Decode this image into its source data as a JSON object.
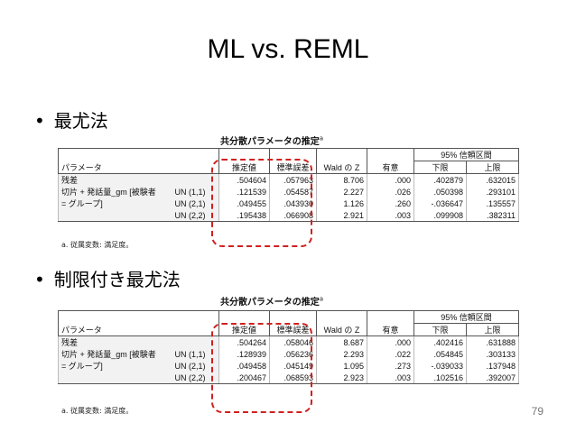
{
  "slide": {
    "title": "ML  vs. REML",
    "page_number": "79"
  },
  "sections": [
    {
      "bullet_marker": "•",
      "bullet_text": "最尤法",
      "table_title": "共分散パラメータの推定",
      "table_title_sup": "a",
      "headers": {
        "param": "パラメータ",
        "estimate": "推定値",
        "std_error": "標準誤差",
        "wald_z": "Wald の Z",
        "sig": "有意",
        "ci_group": "95% 信頼区間",
        "lower": "下限",
        "upper": "上限"
      },
      "rows": [
        {
          "param": "残差",
          "sub": "",
          "estimate": ".504604",
          "std_error": ".057963",
          "wald_z": "8.706",
          "sig": ".000",
          "lower": ".402879",
          "upper": ".632015"
        },
        {
          "param": "切片 + 発話量_gm [被験者",
          "sub": "UN (1,1)",
          "estimate": ".121539",
          "std_error": ".054587",
          "wald_z": "2.227",
          "sig": ".026",
          "lower": ".050398",
          "upper": ".293101"
        },
        {
          "param": "= グループ]",
          "sub": "UN (2,1)",
          "estimate": ".049455",
          "std_error": ".043930",
          "wald_z": "1.126",
          "sig": ".260",
          "lower": "-.036647",
          "upper": ".135557"
        },
        {
          "param": "",
          "sub": "UN (2,2)",
          "estimate": ".195438",
          "std_error": ".066908",
          "wald_z": "2.921",
          "sig": ".003",
          "lower": ".099908",
          "upper": ".382311"
        }
      ],
      "footnote": "a. 従属変数: 満足度。"
    },
    {
      "bullet_marker": "•",
      "bullet_text": "制限付き最尤法",
      "table_title": "共分散パラメータの推定",
      "table_title_sup": "a",
      "headers": {
        "param": "パラメータ",
        "estimate": "推定値",
        "std_error": "標準誤差",
        "wald_z": "Wald の Z",
        "sig": "有意",
        "ci_group": "95% 信頼区間",
        "lower": "下限",
        "upper": "上限"
      },
      "rows": [
        {
          "param": "残差",
          "sub": "",
          "estimate": ".504264",
          "std_error": ".058046",
          "wald_z": "8.687",
          "sig": ".000",
          "lower": ".402416",
          "upper": ".631888"
        },
        {
          "param": "切片 + 発話量_gm [被験者",
          "sub": "UN (1,1)",
          "estimate": ".128939",
          "std_error": ".056236",
          "wald_z": "2.293",
          "sig": ".022",
          "lower": ".054845",
          "upper": ".303133"
        },
        {
          "param": "= グループ]",
          "sub": "UN (2,1)",
          "estimate": ".049458",
          "std_error": ".045149",
          "wald_z": "1.095",
          "sig": ".273",
          "lower": "-.039033",
          "upper": ".137948"
        },
        {
          "param": "",
          "sub": "UN (2,2)",
          "estimate": ".200467",
          "std_error": ".068593",
          "wald_z": "2.923",
          "sig": ".003",
          "lower": ".102516",
          "upper": ".392007"
        }
      ],
      "footnote": "a. 従属変数: 満足度。"
    }
  ]
}
